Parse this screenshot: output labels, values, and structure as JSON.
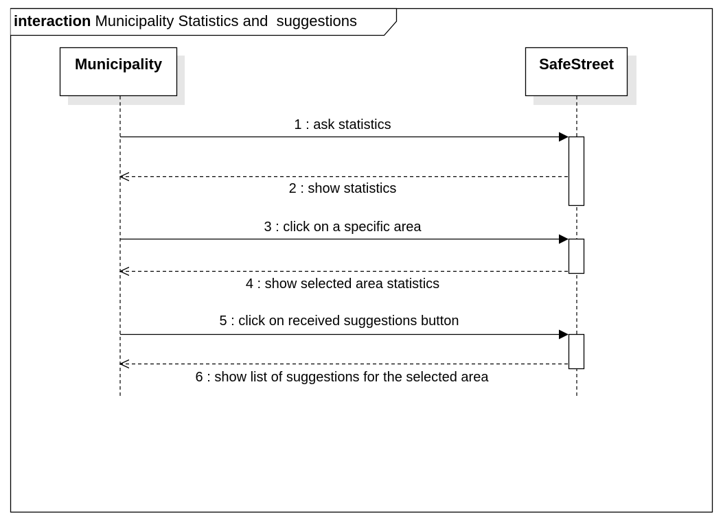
{
  "frame": {
    "keyword": "interaction",
    "title": "Municipality Statistics and  suggestions"
  },
  "participants": [
    {
      "id": "municipality",
      "name": "Municipality"
    },
    {
      "id": "safestreet",
      "name": "SafeStreet"
    }
  ],
  "messages": [
    {
      "label": "1 : ask statistics",
      "from": "municipality",
      "to": "safestreet",
      "kind": "sync"
    },
    {
      "label": "2 : show statistics",
      "from": "safestreet",
      "to": "municipality",
      "kind": "reply"
    },
    {
      "label": "3 : click on a specific area",
      "from": "municipality",
      "to": "safestreet",
      "kind": "sync"
    },
    {
      "label": "4 : show selected area statistics",
      "from": "safestreet",
      "to": "municipality",
      "kind": "reply"
    },
    {
      "label": "5 : click on received suggestions button",
      "from": "municipality",
      "to": "safestreet",
      "kind": "sync"
    },
    {
      "label": "6 : show list of suggestions for the selected area",
      "from": "safestreet",
      "to": "municipality",
      "kind": "reply"
    }
  ],
  "colors": {
    "line": "#000000",
    "shadow": "#e6e6e6",
    "background": "#ffffff"
  }
}
